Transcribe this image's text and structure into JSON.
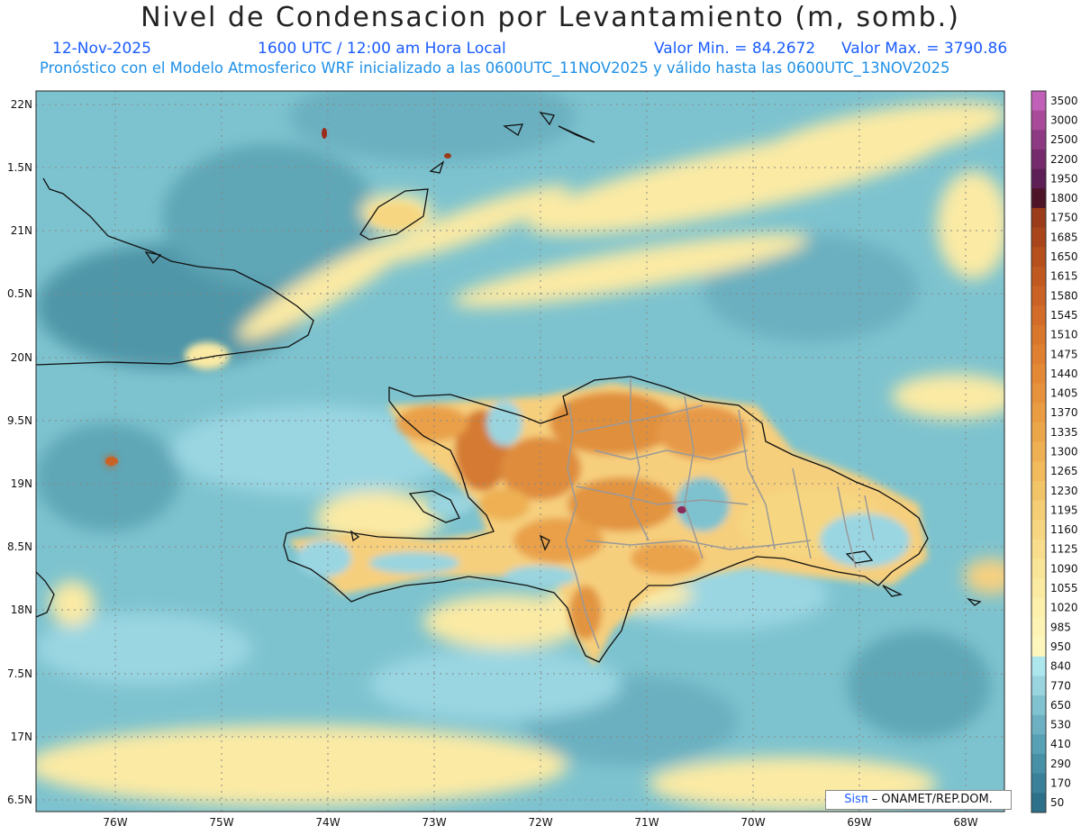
{
  "header": {
    "title": "Nivel de Condensacion por Levantamiento (m, somb.)",
    "date": "12-Nov-2025",
    "time": "1600 UTC / 12:00 am Hora Local",
    "min_value": "Valor Min. = 84.2672",
    "max_value": "Valor Max. = 3790.86",
    "forecast_note": "Pronóstico con el Modelo Atmosferico WRF inicializado a las 0600UTC_11NOV2025 y válido hasta las  0600UTC_13NOV2025"
  },
  "map": {
    "lat_ticks": [
      "22N",
      "1.5N",
      "21N",
      "0.5N",
      "20N",
      "9.5N",
      "19N",
      "8.5N",
      "18N",
      "7.5N",
      "17N",
      "6.5N"
    ],
    "lon_ticks": [
      "76W",
      "75W",
      "74W",
      "73W",
      "72W",
      "71W",
      "70W",
      "69W",
      "68W"
    ],
    "credit_brand": "Sisπ",
    "credit_text": " – ONAMET/REP.DOM."
  },
  "legend": {
    "levels": [
      "3500",
      "3000",
      "2500",
      "2200",
      "1950",
      "1800",
      "1750",
      "1685",
      "1650",
      "1615",
      "1580",
      "1545",
      "1510",
      "1475",
      "1440",
      "1405",
      "1370",
      "1335",
      "1300",
      "1265",
      "1230",
      "1195",
      "1160",
      "1125",
      "1090",
      "1055",
      "1020",
      "985",
      "950",
      "840",
      "770",
      "650",
      "530",
      "410",
      "290",
      "170",
      "50"
    ],
    "colors": [
      "#c060b8",
      "#a84a98",
      "#8e3a82",
      "#762c6c",
      "#5e1e56",
      "#4e1428",
      "#9a3c1a",
      "#a9451a",
      "#b54f1c",
      "#bf591f",
      "#c96224",
      "#d26c28",
      "#d8762c",
      "#de7f31",
      "#e38936",
      "#e6923c",
      "#e99c42",
      "#ecA64a",
      "#eeb053",
      "#f0ba5d",
      "#f2c468",
      "#f4cd74",
      "#f6d680",
      "#f8de8c",
      "#f9e597",
      "#fbeba2",
      "#fcf0ac",
      "#fdf3b5",
      "#fdf6bd",
      "#aee6ee",
      "#9ad4de",
      "#80c2cf",
      "#6cb0c2",
      "#58a0b4",
      "#4890a6",
      "#3a8098",
      "#2c708a"
    ]
  }
}
